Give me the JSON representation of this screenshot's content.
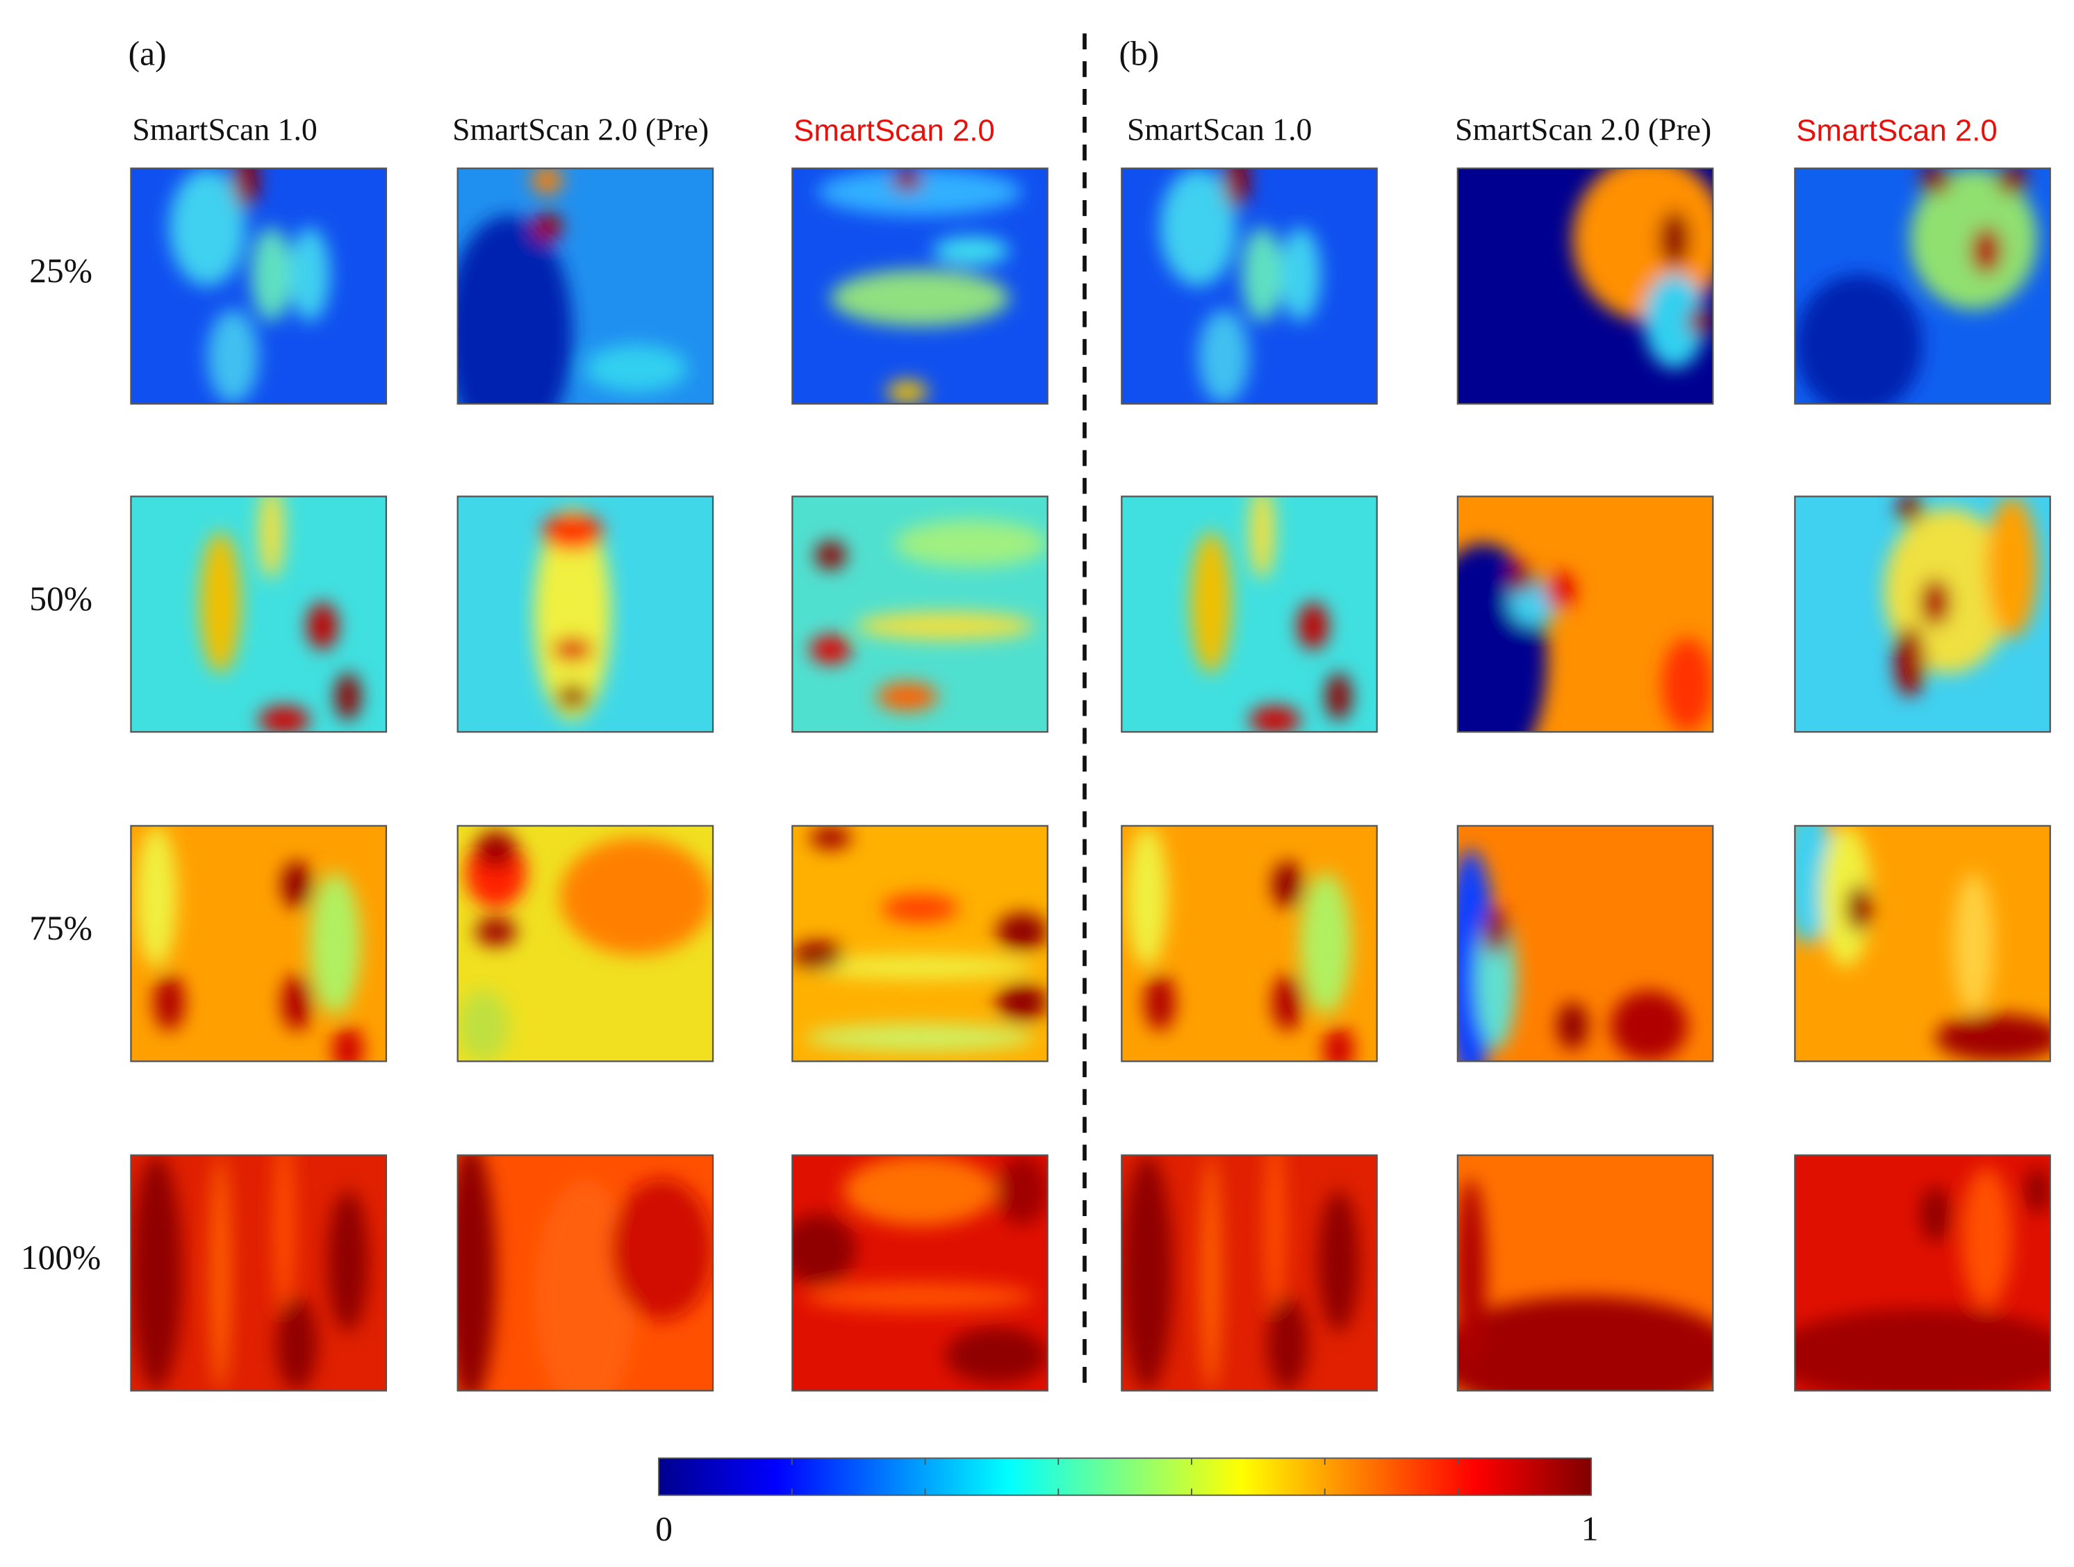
{
  "panels": [
    {
      "label": "(a)",
      "columns": [
        "SmartScan 1.0",
        "SmartScan 2.0 (Pre)",
        "SmartScan 2.0"
      ]
    },
    {
      "label": "(b)",
      "columns": [
        "SmartScan 1.0",
        "SmartScan 2.0 (Pre)",
        "SmartScan 2.0"
      ]
    }
  ],
  "rows": [
    "25%",
    "50%",
    "75%",
    "100%"
  ],
  "colorbar": {
    "min": "0",
    "max": "1"
  }
}
